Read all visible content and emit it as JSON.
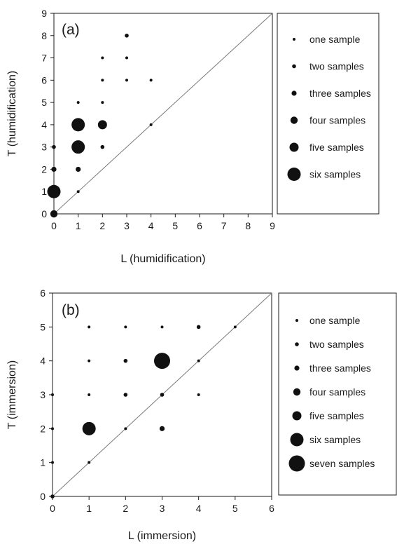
{
  "colors": {
    "marker": "#111111",
    "axis": "#1a1a1a",
    "diagonal": "#7a7a7a"
  },
  "chart_data": [
    {
      "type": "scatter",
      "panel_label": "(a)",
      "xlabel": "L (humidification)",
      "ylabel": "T (humidification)",
      "xlim": [
        0,
        9
      ],
      "ylim": [
        0,
        9
      ],
      "xticks": [
        "0",
        "1",
        "2",
        "3",
        "4",
        "5",
        "6",
        "7",
        "8",
        "9"
      ],
      "yticks": [
        "0",
        "1",
        "2",
        "3",
        "4",
        "5",
        "6",
        "7",
        "8",
        "9"
      ],
      "reference_line": "y = x",
      "legend_placement": "right",
      "legend": [
        {
          "label": "one sample",
          "count": 1
        },
        {
          "label": "two samples",
          "count": 2
        },
        {
          "label": "three samples",
          "count": 3
        },
        {
          "label": "four samples",
          "count": 4
        },
        {
          "label": "five samples",
          "count": 5
        },
        {
          "label": "six samples",
          "count": 6
        }
      ],
      "points": [
        {
          "x": 0,
          "y": 0,
          "count": 4
        },
        {
          "x": 0,
          "y": 1,
          "count": 6
        },
        {
          "x": 0,
          "y": 2,
          "count": 3
        },
        {
          "x": 0,
          "y": 3,
          "count": 2
        },
        {
          "x": 1,
          "y": 1,
          "count": 1
        },
        {
          "x": 1,
          "y": 2,
          "count": 3
        },
        {
          "x": 1,
          "y": 3,
          "count": 6
        },
        {
          "x": 1,
          "y": 4,
          "count": 6
        },
        {
          "x": 1,
          "y": 5,
          "count": 1
        },
        {
          "x": 2,
          "y": 3,
          "count": 2
        },
        {
          "x": 2,
          "y": 4,
          "count": 5
        },
        {
          "x": 2,
          "y": 5,
          "count": 1
        },
        {
          "x": 2,
          "y": 6,
          "count": 1
        },
        {
          "x": 2,
          "y": 7,
          "count": 1
        },
        {
          "x": 3,
          "y": 6,
          "count": 1
        },
        {
          "x": 3,
          "y": 7,
          "count": 1
        },
        {
          "x": 3,
          "y": 8,
          "count": 2
        },
        {
          "x": 4,
          "y": 4,
          "count": 1
        },
        {
          "x": 4,
          "y": 6,
          "count": 1
        }
      ]
    },
    {
      "type": "scatter",
      "panel_label": "(b)",
      "xlabel": "L (immersion)",
      "ylabel": "T (immersion)",
      "xlim": [
        0,
        6
      ],
      "ylim": [
        0,
        6
      ],
      "xticks": [
        "0",
        "1",
        "2",
        "3",
        "4",
        "5",
        "6"
      ],
      "yticks": [
        "0",
        "1",
        "2",
        "3",
        "4",
        "5",
        "6"
      ],
      "reference_line": "y = x",
      "legend_placement": "right",
      "legend": [
        {
          "label": "one sample",
          "count": 1
        },
        {
          "label": "two samples",
          "count": 2
        },
        {
          "label": "three samples",
          "count": 3
        },
        {
          "label": "four samples",
          "count": 4
        },
        {
          "label": "five samples",
          "count": 5
        },
        {
          "label": "six samples",
          "count": 6
        },
        {
          "label": "seven samples",
          "count": 7
        }
      ],
      "points": [
        {
          "x": 0,
          "y": 0,
          "count": 2
        },
        {
          "x": 0,
          "y": 1,
          "count": 1
        },
        {
          "x": 0,
          "y": 2,
          "count": 1
        },
        {
          "x": 0,
          "y": 3,
          "count": 1
        },
        {
          "x": 1,
          "y": 1,
          "count": 1
        },
        {
          "x": 1,
          "y": 2,
          "count": 6
        },
        {
          "x": 1,
          "y": 3,
          "count": 1
        },
        {
          "x": 1,
          "y": 4,
          "count": 1
        },
        {
          "x": 1,
          "y": 5,
          "count": 1
        },
        {
          "x": 2,
          "y": 2,
          "count": 1
        },
        {
          "x": 2,
          "y": 3,
          "count": 2
        },
        {
          "x": 2,
          "y": 4,
          "count": 2
        },
        {
          "x": 2,
          "y": 5,
          "count": 1
        },
        {
          "x": 3,
          "y": 2,
          "count": 3
        },
        {
          "x": 3,
          "y": 3,
          "count": 2
        },
        {
          "x": 3,
          "y": 4,
          "count": 7
        },
        {
          "x": 3,
          "y": 5,
          "count": 1
        },
        {
          "x": 4,
          "y": 3,
          "count": 1
        },
        {
          "x": 4,
          "y": 4,
          "count": 1
        },
        {
          "x": 4,
          "y": 5,
          "count": 2
        },
        {
          "x": 5,
          "y": 5,
          "count": 1
        }
      ]
    }
  ]
}
